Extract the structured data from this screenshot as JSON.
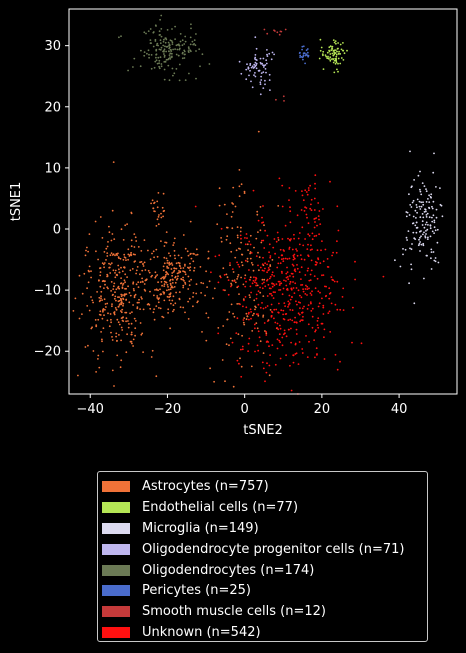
{
  "chart_data": {
    "type": "scatter",
    "xlabel": "tSNE2",
    "ylabel": "tSNE1",
    "xlim": [
      -45.5,
      55
    ],
    "ylim": [
      -27,
      36
    ],
    "xticks": [
      -40,
      -20,
      0,
      20,
      40
    ],
    "yticks": [
      -20,
      -10,
      0,
      10,
      20,
      30
    ],
    "grid": false,
    "legend_position": "below",
    "series": [
      {
        "name": "Astrocytes (n=757)",
        "color": "#f07238",
        "count": 757
      },
      {
        "name": "Endothelial cells (n=77)",
        "color": "#b5e655",
        "count": 77
      },
      {
        "name": "Microglia (n=149)",
        "color": "#dcdaf0",
        "count": 149
      },
      {
        "name": "Oligodendrocyte progenitor cells (n=71)",
        "color": "#beb6ee",
        "count": 71
      },
      {
        "name": "Oligodendrocytes (n=174)",
        "color": "#6b7a55",
        "count": 174
      },
      {
        "name": "Pericytes (n=25)",
        "color": "#4a6ccc",
        "count": 25
      },
      {
        "name": "Smooth muscle cells (n=12)",
        "color": "#c53a3a",
        "count": 12
      },
      {
        "name": "Unknown (n=542)",
        "color": "#ff1010",
        "count": 542
      }
    ]
  }
}
